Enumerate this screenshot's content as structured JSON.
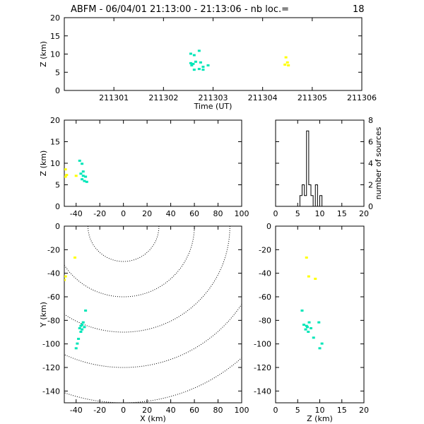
{
  "header": {
    "title": "ABFM - 06/04/01 21:13:00 - 21:13:06 - nb loc.=",
    "count": "18"
  },
  "colors": {
    "early": "#ffff00",
    "late": "#00e6b8",
    "axis": "#000000",
    "range_circles": "#000000"
  },
  "chart_data": [
    {
      "id": "time_height",
      "type": "scatter",
      "xlabel": "Time (UT)",
      "ylabel": "Z (km)",
      "xlim": [
        211300,
        211306
      ],
      "ylim": [
        0,
        20
      ],
      "xticks": [
        211301,
        211302,
        211303,
        211304,
        211305,
        211306
      ],
      "yticks": [
        0,
        5,
        10,
        15,
        20
      ],
      "series": [
        {
          "color_key": "late",
          "points": [
            [
              211302.55,
              10.0
            ],
            [
              211302.62,
              9.6
            ],
            [
              211302.72,
              10.8
            ],
            [
              211302.55,
              7.4
            ],
            [
              211302.6,
              7.2
            ],
            [
              211302.65,
              7.8
            ],
            [
              211302.75,
              7.6
            ],
            [
              211302.57,
              6.8
            ],
            [
              211302.8,
              6.4
            ],
            [
              211302.9,
              6.8
            ],
            [
              211302.62,
              5.6
            ],
            [
              211302.72,
              5.8
            ],
            [
              211302.8,
              5.6
            ]
          ]
        },
        {
          "color_key": "early",
          "points": [
            [
              211304.47,
              9.0
            ],
            [
              211304.5,
              7.6
            ],
            [
              211304.45,
              7.0
            ],
            [
              211304.52,
              6.8
            ]
          ]
        }
      ]
    },
    {
      "id": "x_height",
      "type": "scatter",
      "xlabel": "",
      "ylabel": "Z (km)",
      "xlim": [
        -50,
        100
      ],
      "ylim": [
        0,
        20
      ],
      "xticks": [
        -40,
        -20,
        0,
        20,
        40,
        60,
        80,
        100
      ],
      "yticks": [
        0,
        5,
        10,
        15,
        20
      ],
      "series": [
        {
          "color_key": "late",
          "points": [
            [
              -37,
              10.5
            ],
            [
              -35,
              9.8
            ],
            [
              -36,
              7.5
            ],
            [
              -34,
              7.0
            ],
            [
              -32,
              6.8
            ],
            [
              -35,
              6.2
            ],
            [
              -33,
              5.8
            ],
            [
              -31,
              5.6
            ],
            [
              -34,
              8.0
            ]
          ]
        },
        {
          "color_key": "early",
          "points": [
            [
              -49,
              8.5
            ],
            [
              -48,
              7.2
            ],
            [
              -40,
              7.0
            ],
            [
              -49,
              6.8
            ]
          ]
        }
      ]
    },
    {
      "id": "histogram",
      "type": "bar",
      "xlabel": "",
      "ylabel": "number of sources",
      "xlim": [
        0,
        20
      ],
      "ylim": [
        0,
        8
      ],
      "xticks": [
        0,
        5,
        10,
        15,
        20
      ],
      "yticks": [
        0,
        2,
        4,
        6,
        8
      ],
      "bin_edges": [
        0,
        0.5,
        1,
        1.5,
        2,
        2.5,
        3,
        3.5,
        4,
        4.5,
        5,
        5.5,
        6,
        6.5,
        7,
        7.5,
        8,
        8.5,
        9,
        9.5,
        10,
        10.5,
        11,
        11.5,
        12,
        12.5,
        13,
        13.5,
        14,
        14.5,
        15,
        15.5,
        16,
        16.5,
        17,
        17.5,
        18,
        18.5,
        19,
        19.5,
        20
      ],
      "counts": [
        0,
        0,
        0,
        0,
        0,
        0,
        0,
        0,
        0,
        0,
        0,
        1,
        2,
        1,
        7,
        2,
        1,
        0,
        2,
        0,
        1,
        0,
        0,
        0,
        0,
        0,
        0,
        0,
        0,
        0,
        0,
        0,
        0,
        0,
        0,
        0,
        0,
        0,
        0,
        0
      ]
    },
    {
      "id": "plan_view",
      "type": "scatter",
      "xlabel": "X (km)",
      "ylabel": "Y (km)",
      "xlim": [
        -50,
        100
      ],
      "ylim": [
        -150,
        0
      ],
      "xticks": [
        -40,
        -20,
        0,
        20,
        40,
        60,
        80,
        100
      ],
      "yticks": [
        0,
        -20,
        -40,
        -60,
        -80,
        -100,
        -120,
        -140
      ],
      "range_circle_radii_km": [
        30,
        60,
        90,
        120,
        150
      ],
      "series": [
        {
          "color_key": "late",
          "points": [
            [
              -32,
              -72
            ],
            [
              -35,
              -84
            ],
            [
              -36,
              -85
            ],
            [
              -34,
              -82
            ],
            [
              -33,
              -86
            ],
            [
              -37,
              -87
            ],
            [
              -35,
              -88
            ],
            [
              -36,
              -90
            ],
            [
              -38,
              -96
            ],
            [
              -39,
              -100
            ],
            [
              -40,
              -104
            ]
          ]
        },
        {
          "color_key": "early",
          "points": [
            [
              -41,
              -27
            ],
            [
              -49,
              -43
            ],
            [
              -50,
              -46
            ]
          ]
        }
      ]
    },
    {
      "id": "z_y_view",
      "type": "scatter",
      "xlabel": "Z (km)",
      "ylabel": "",
      "xlim": [
        0,
        20
      ],
      "ylim": [
        -150,
        0
      ],
      "xticks": [
        0,
        5,
        10,
        15,
        20
      ],
      "yticks": [
        0,
        -20,
        -40,
        -60,
        -80,
        -100,
        -120,
        -140
      ],
      "series": [
        {
          "color_key": "late",
          "points": [
            [
              6.0,
              -72
            ],
            [
              6.4,
              -84
            ],
            [
              7.0,
              -85
            ],
            [
              7.6,
              -82
            ],
            [
              7.2,
              -86
            ],
            [
              8.0,
              -87
            ],
            [
              6.8,
              -88
            ],
            [
              7.4,
              -90
            ],
            [
              9.8,
              -82
            ],
            [
              8.6,
              -95
            ],
            [
              10.5,
              -100
            ],
            [
              10.0,
              -104
            ]
          ]
        },
        {
          "color_key": "early",
          "points": [
            [
              7.0,
              -27
            ],
            [
              7.5,
              -43
            ],
            [
              9.0,
              -45
            ]
          ]
        }
      ]
    }
  ]
}
